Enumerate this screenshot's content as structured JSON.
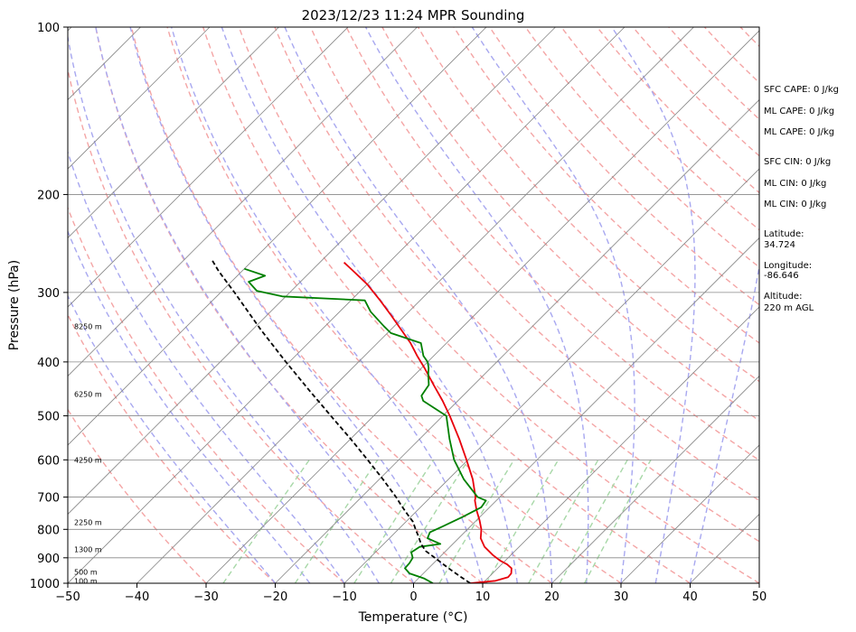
{
  "chart_data": {
    "type": "line",
    "subtype": "skew-t log-p sounding",
    "title": "2023/12/23 11:24 MPR Sounding",
    "xlabel": "Temperature (°C)",
    "ylabel": "Pressure (hPa)",
    "xlim": [
      -50,
      50
    ],
    "ylim": [
      1000,
      100
    ],
    "y_scale": "log",
    "x_ticks": [
      -50,
      -40,
      -30,
      -20,
      -10,
      0,
      10,
      20,
      30,
      40,
      50
    ],
    "x_tick_labels": [
      "−50",
      "−40",
      "−30",
      "−20",
      "−10",
      "0",
      "10",
      "20",
      "30",
      "40",
      "50"
    ],
    "y_ticks": [
      1000,
      900,
      800,
      700,
      600,
      500,
      400,
      300,
      200,
      100
    ],
    "y_tick_labels": [
      "1000",
      "900",
      "800",
      "700",
      "600",
      "500",
      "400",
      "300",
      "200",
      "100"
    ],
    "grid": true,
    "colors": {
      "temperature": "#e8000b",
      "dewpoint": "#008000",
      "parcel": "#000000",
      "isotherm": "#888888",
      "dry_adiabat": "#f4a5a5",
      "moist_adiabat": "#a8a8f0",
      "mixing_ratio": "#a8d8a8"
    },
    "series": [
      {
        "key": "temperature",
        "p": [
          1000,
          990,
          975,
          960,
          940,
          925,
          910,
          890,
          860,
          830,
          800,
          770,
          740,
          710,
          700,
          650,
          600,
          550,
          500,
          470,
          440,
          410,
          390,
          370,
          350,
          330,
          310,
          290,
          275,
          265
        ],
        "t": [
          8.2,
          11.5,
          12.8,
          12.7,
          12.0,
          10.8,
          9.2,
          7.4,
          5.0,
          3.2,
          2.0,
          0.4,
          -1.4,
          -3.1,
          -3.5,
          -6.5,
          -10.2,
          -14.3,
          -19.0,
          -22.2,
          -25.8,
          -29.6,
          -32.4,
          -35.2,
          -38.5,
          -42.0,
          -45.8,
          -50.0,
          -53.8,
          -56.5
        ]
      },
      {
        "key": "dewpoint",
        "p": [
          1000,
          980,
          960,
          940,
          920,
          900,
          880,
          860,
          850,
          830,
          810,
          790,
          760,
          730,
          710,
          700,
          650,
          600,
          550,
          500,
          470,
          460,
          440,
          420,
          410,
          400,
          390,
          370,
          355,
          345,
          325,
          310,
          305,
          298,
          287,
          280,
          272
        ],
        "t": [
          2.8,
          0.8,
          -2.0,
          -3.4,
          -3.5,
          -3.8,
          -4.8,
          -4.4,
          -1.8,
          -4.5,
          -5.0,
          -4.0,
          -2.5,
          -1.2,
          -1.5,
          -3.2,
          -7.8,
          -12.0,
          -15.7,
          -19.5,
          -25.0,
          -26.0,
          -26.5,
          -28.2,
          -29.0,
          -30.0,
          -31.5,
          -33.7,
          -39.5,
          -41.5,
          -45.5,
          -48.0,
          -60.5,
          -65.0,
          -67.5,
          -66.0,
          -70.0
        ]
      },
      {
        "key": "parcel",
        "p": [
          1000,
          975,
          950,
          925,
          900,
          875,
          850,
          825,
          800,
          775,
          750,
          725,
          700,
          650,
          600,
          550,
          500,
          450,
          400,
          350,
          300,
          275,
          262
        ],
        "t": [
          8.2,
          6.0,
          3.8,
          1.6,
          -0.6,
          -2.9,
          -4.6,
          -6.0,
          -7.5,
          -9.0,
          -11.0,
          -13.0,
          -15.0,
          -19.5,
          -24.5,
          -30.0,
          -36.2,
          -43.0,
          -50.5,
          -58.8,
          -68.0,
          -73.3,
          -76.0
        ]
      }
    ],
    "height_labels": [
      {
        "text": "100 m",
        "p": 990
      },
      {
        "text": "500 m",
        "p": 955
      },
      {
        "text": "1300 m",
        "p": 870
      },
      {
        "text": "2250 m",
        "p": 777
      },
      {
        "text": "4250 m",
        "p": 600
      },
      {
        "text": "6250 m",
        "p": 457
      },
      {
        "text": "8250 m",
        "p": 345
      }
    ],
    "annotations": [
      "SFC CAPE: 0 J/kg",
      "ML CAPE: 0 J/kg",
      "ML CAPE: 0 J/kg",
      "SFC CIN: 0 J/kg",
      "ML CIN: 0 J/kg",
      "ML CIN: 0 J/kg",
      "Latitude:",
      "34.724",
      "Longitude:",
      "-86.646",
      "Altitude:",
      "220 m AGL"
    ]
  }
}
